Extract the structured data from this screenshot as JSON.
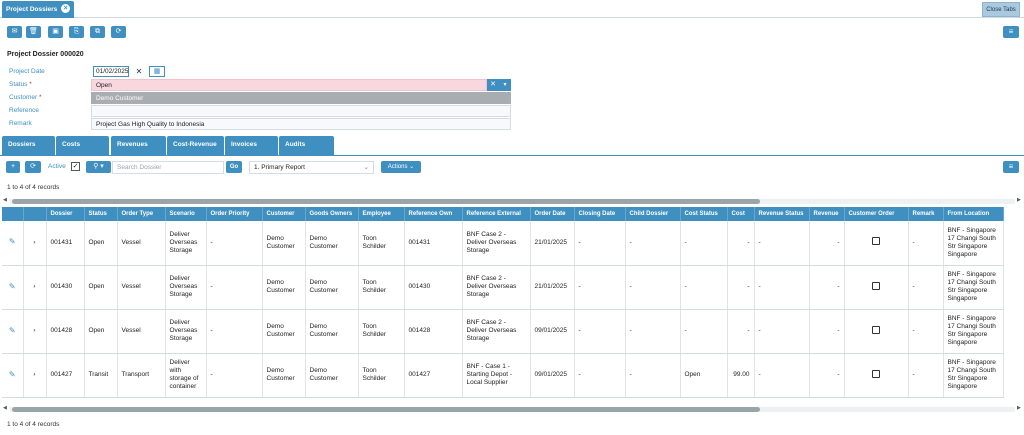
{
  "tabs": {
    "active": "Project Dossiers",
    "close_all": "Close Tabs"
  },
  "toolbar": {
    "icons": [
      "email-icon",
      "trash-icon",
      "save-icon",
      "save-as-icon",
      "copy-icon",
      "refresh-icon",
      "menu-icon"
    ]
  },
  "page_title": "Project Dossier 000020",
  "form": {
    "project_date_label": "Project Date",
    "project_date_value": "01/02/2025",
    "status_label": "Status",
    "status_value": "Open",
    "customer_label": "Customer",
    "customer_value": "Demo Customer",
    "reference_label": "Reference",
    "reference_value": "",
    "remark_label": "Remark",
    "remark_value": "Project Gas High Quality to Indonesia",
    "required_mark": "*"
  },
  "section_tabs": [
    "Dossiers",
    "Costs",
    "Revenues",
    "Cost-Revenue",
    "Invoices",
    "Audits"
  ],
  "list_toolbar": {
    "active_label": "Active",
    "search_placeholder": "Search Dossier",
    "go_label": "Go",
    "report_value": "1. Primary Report",
    "actions_label": "Actions"
  },
  "records_text": "1 to 4 of 4 records",
  "table": {
    "columns": [
      "",
      "",
      "Dossier",
      "Status",
      "Order Type",
      "Scenario",
      "Order Priority",
      "Customer",
      "Goods Owners",
      "Employee",
      "Reference Own",
      "Reference External",
      "Order Date",
      "Closing Date",
      "Child Dossier",
      "Cost Status",
      "Cost",
      "Revenue Status",
      "Revenue",
      "Customer Order",
      "Remark",
      "From Location"
    ],
    "rows": [
      {
        "dossier": "001431",
        "status": "Open",
        "order_type": "Vessel",
        "scenario": "Deliver Overseas Storage",
        "order_priority": "-",
        "customer": "Demo Customer",
        "goods_owners": "Demo Customer",
        "employee": "Toon Schilder",
        "reference_own": "001431",
        "reference_external": "BNF Case 2 - Deliver Overseas Storage",
        "order_date": "21/01/2025",
        "closing_date": "-",
        "child_dossier": "-",
        "cost_status": "-",
        "cost": "-",
        "revenue_status": "-",
        "revenue": "-",
        "remark": "-",
        "from_location": "BNF - Singapore 17 Changi South Str Singapore Singapore"
      },
      {
        "dossier": "001430",
        "status": "Open",
        "order_type": "Vessel",
        "scenario": "Deliver Overseas Storage",
        "order_priority": "-",
        "customer": "Demo Customer",
        "goods_owners": "Demo Customer",
        "employee": "Toon Schilder",
        "reference_own": "001430",
        "reference_external": "BNF Case 2 - Deliver Overseas Storage",
        "order_date": "21/01/2025",
        "closing_date": "-",
        "child_dossier": "-",
        "cost_status": "-",
        "cost": "-",
        "revenue_status": "-",
        "revenue": "-",
        "remark": "-",
        "from_location": "BNF - Singapore 17 Changi South Str Singapore Singapore"
      },
      {
        "dossier": "001428",
        "status": "Open",
        "order_type": "Vessel",
        "scenario": "Deliver Overseas Storage",
        "order_priority": "-",
        "customer": "Demo Customer",
        "goods_owners": "Demo Customer",
        "employee": "Toon Schilder",
        "reference_own": "001428",
        "reference_external": "BNF Case 2 - Deliver Overseas Storage",
        "order_date": "09/01/2025",
        "closing_date": "-",
        "child_dossier": "-",
        "cost_status": "-",
        "cost": "-",
        "revenue_status": "-",
        "revenue": "-",
        "remark": "-",
        "from_location": "BNF - Singapore 17 Changi South Str Singapore Singapore"
      },
      {
        "dossier": "001427",
        "status": "Transit",
        "order_type": "Transport",
        "scenario": "Deliver with storage of container",
        "order_priority": "-",
        "customer": "Demo Customer",
        "goods_owners": "Demo Customer",
        "employee": "Toon Schilder",
        "reference_own": "001427",
        "reference_external": "BNF - Case 1 - Starting Depot - Local Supplier",
        "order_date": "09/01/2025",
        "closing_date": "-",
        "child_dossier": "-",
        "cost_status": "Open",
        "cost": "99.00",
        "revenue_status": "-",
        "revenue": "-",
        "remark": "-",
        "from_location": "BNF - Singapore 17 Changi South Str Singapore Singapore"
      }
    ]
  }
}
